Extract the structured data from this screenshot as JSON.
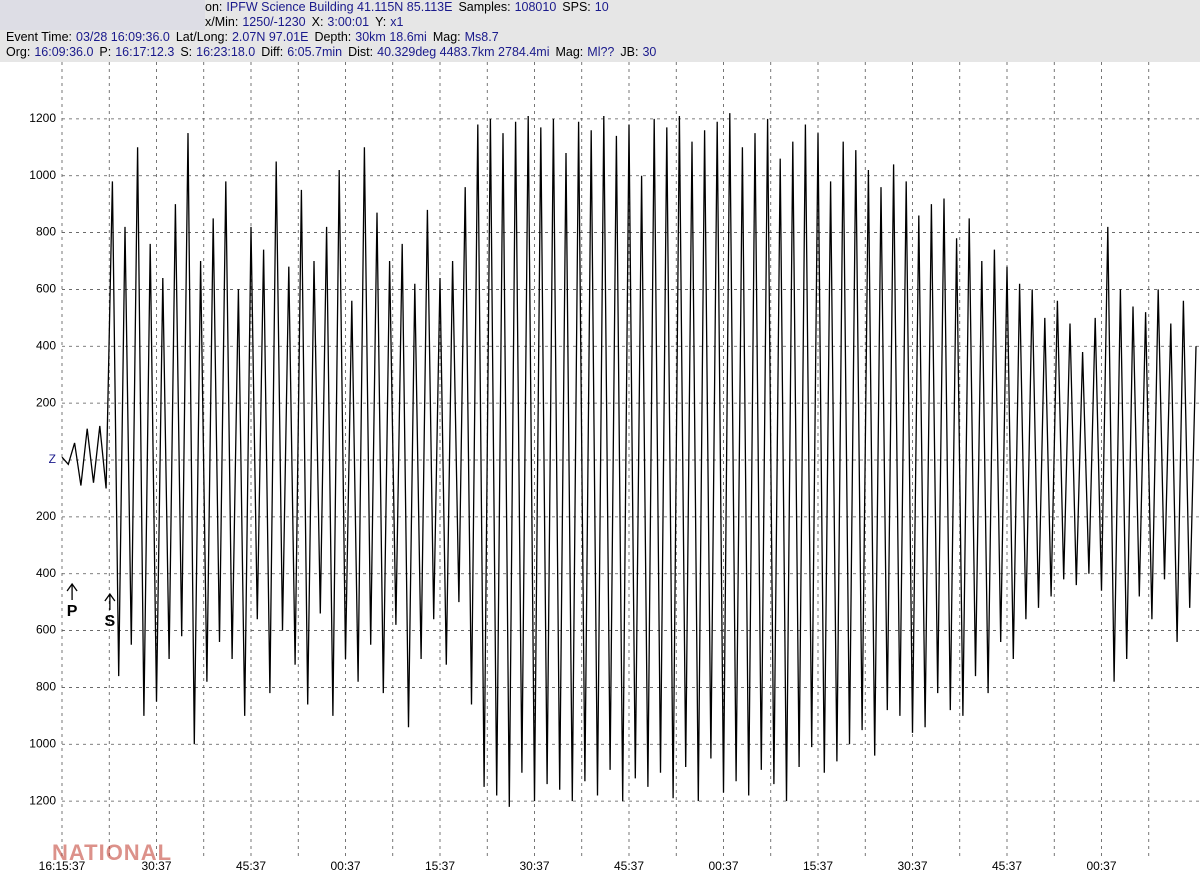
{
  "header": {
    "lines": [
      [
        {
          "label": "on:",
          "value": "IPFW Science Building 41.115N 85.113E"
        },
        {
          "label": "Samples:",
          "value": "108010"
        },
        {
          "label": "SPS:",
          "value": "10"
        }
      ],
      [
        {
          "label": "x/Min:",
          "value": "1250/-1230"
        },
        {
          "label": "X:",
          "value": "3:00:01"
        },
        {
          "label": "Y:",
          "value": "x1"
        }
      ],
      [
        {
          "label": "Event Time:",
          "value": "03/28 16:09:36.0"
        },
        {
          "label": "Lat/Long:",
          "value": "2.07N 97.01E"
        },
        {
          "label": "Depth:",
          "value": "30km 18.6mi"
        },
        {
          "label": "Mag:",
          "value": "Ms8.7"
        }
      ],
      [
        {
          "label": "Org:",
          "value": "16:09:36.0"
        },
        {
          "label": "P:",
          "value": "16:17:12.3"
        },
        {
          "label": "S:",
          "value": "16:23:18.0"
        },
        {
          "label": "Diff:",
          "value": "6:05.7min"
        },
        {
          "label": "Dist:",
          "value": "40.329deg 4483.7km 2784.4mi"
        },
        {
          "label": "Mag:",
          "value": "Ml??"
        },
        {
          "label": "JB:",
          "value": "30"
        }
      ]
    ]
  },
  "watermark": "NATIONAL",
  "chart_data": {
    "type": "line",
    "color": "#000000",
    "grid": true,
    "xlim": [
      0,
      180
    ],
    "ylim": [
      -1400,
      1400
    ],
    "xticks": [
      {
        "value": 0,
        "label": "16:15:37"
      },
      {
        "value": 15,
        "label": "30:37"
      },
      {
        "value": 30,
        "label": "45:37"
      },
      {
        "value": 45,
        "label": "00:37"
      },
      {
        "value": 60,
        "label": "15:37"
      },
      {
        "value": 75,
        "label": "30:37"
      },
      {
        "value": 90,
        "label": "45:37"
      },
      {
        "value": 105,
        "label": "00:37"
      },
      {
        "value": 120,
        "label": "15:37"
      },
      {
        "value": 135,
        "label": "30:37"
      },
      {
        "value": 150,
        "label": "45:37"
      },
      {
        "value": 165,
        "label": "00:37"
      }
    ],
    "xminorticks": [
      7.5,
      22.5,
      37.5,
      52.5,
      67.5,
      82.5,
      97.5,
      112.5,
      127.5,
      142.5,
      157.5,
      172.5
    ],
    "yticks": [
      1200,
      1000,
      800,
      600,
      400,
      200,
      {
        "value": 0,
        "label": "Z"
      },
      {
        "value": -200,
        "label": "200"
      },
      {
        "value": -400,
        "label": "400"
      },
      {
        "value": -600,
        "label": "600"
      },
      {
        "value": -800,
        "label": "800"
      },
      {
        "value": -1000,
        "label": "1000"
      },
      {
        "value": -1200,
        "label": "1200"
      }
    ],
    "annotations": [
      {
        "text": "P",
        "x": 1.6
      },
      {
        "text": "S",
        "x": 7.6
      }
    ],
    "x": [
      0,
      1,
      2,
      3,
      4,
      5,
      6,
      7,
      8,
      9,
      10,
      11,
      12,
      13,
      14,
      15,
      16,
      17,
      18,
      19,
      20,
      21,
      22,
      23,
      24,
      25,
      26,
      27,
      28,
      29,
      30,
      31,
      32,
      33,
      34,
      35,
      36,
      37,
      38,
      39,
      40,
      41,
      42,
      43,
      44,
      45,
      46,
      47,
      48,
      49,
      50,
      51,
      52,
      53,
      54,
      55,
      56,
      57,
      58,
      59,
      60,
      61,
      62,
      63,
      64,
      65,
      66,
      67,
      68,
      69,
      70,
      71,
      72,
      73,
      74,
      75,
      76,
      77,
      78,
      79,
      80,
      81,
      82,
      83,
      84,
      85,
      86,
      87,
      88,
      89,
      90,
      91,
      92,
      93,
      94,
      95,
      96,
      97,
      98,
      99,
      100,
      101,
      102,
      103,
      104,
      105,
      106,
      107,
      108,
      109,
      110,
      111,
      112,
      113,
      114,
      115,
      116,
      117,
      118,
      119,
      120,
      121,
      122,
      123,
      124,
      125,
      126,
      127,
      128,
      129,
      130,
      131,
      132,
      133,
      134,
      135,
      136,
      137,
      138,
      139,
      140,
      141,
      142,
      143,
      144,
      145,
      146,
      147,
      148,
      149,
      150,
      151,
      152,
      153,
      154,
      155,
      156,
      157,
      158,
      159,
      160,
      161,
      162,
      163,
      164,
      165,
      166,
      167,
      168,
      169,
      170,
      171,
      172,
      173,
      174,
      175,
      176,
      177,
      178,
      179,
      180
    ],
    "values": [
      10,
      -15,
      60,
      -90,
      110,
      -80,
      120,
      -100,
      980,
      -760,
      820,
      -650,
      1100,
      -900,
      760,
      -850,
      640,
      -700,
      900,
      -620,
      1150,
      -1000,
      700,
      -780,
      850,
      -640,
      980,
      -700,
      600,
      -900,
      820,
      -560,
      740,
      -820,
      1050,
      -600,
      680,
      -720,
      950,
      -860,
      700,
      -540,
      820,
      -900,
      1020,
      -700,
      560,
      -780,
      1100,
      -650,
      870,
      -820,
      700,
      -580,
      760,
      -940,
      620,
      -700,
      880,
      -560,
      640,
      -720,
      700,
      -500,
      960,
      -860,
      1180,
      -1150,
      1200,
      -1180,
      1150,
      -1220,
      1190,
      -1100,
      1210,
      -1200,
      1170,
      -1140,
      1200,
      -1160,
      1080,
      -1200,
      1190,
      -1130,
      1160,
      -1180,
      1210,
      -1090,
      1140,
      -1200,
      1180,
      -1120,
      1000,
      -1150,
      1200,
      -1100,
      1170,
      -1190,
      1210,
      -1080,
      1120,
      -1200,
      1160,
      -1050,
      1190,
      -1170,
      1220,
      -1130,
      1100,
      -1180,
      1150,
      -1090,
      1200,
      -1140,
      1060,
      -1200,
      1120,
      -1080,
      1180,
      -1010,
      1150,
      -1100,
      980,
      -1060,
      1120,
      -1000,
      1090,
      -950,
      1020,
      -1040,
      960,
      -880,
      1040,
      -900,
      980,
      -960,
      860,
      -940,
      900,
      -820,
      920,
      -880,
      780,
      -900,
      850,
      -760,
      700,
      -820,
      740,
      -640,
      680,
      -700,
      620,
      -560,
      600,
      -520,
      500,
      -480,
      560,
      -420,
      480,
      -440,
      380,
      -400,
      500,
      -460,
      820,
      -780,
      600,
      -700,
      540,
      -480,
      520,
      -560,
      600,
      -420,
      480,
      -640,
      560,
      -520,
      400
    ]
  }
}
